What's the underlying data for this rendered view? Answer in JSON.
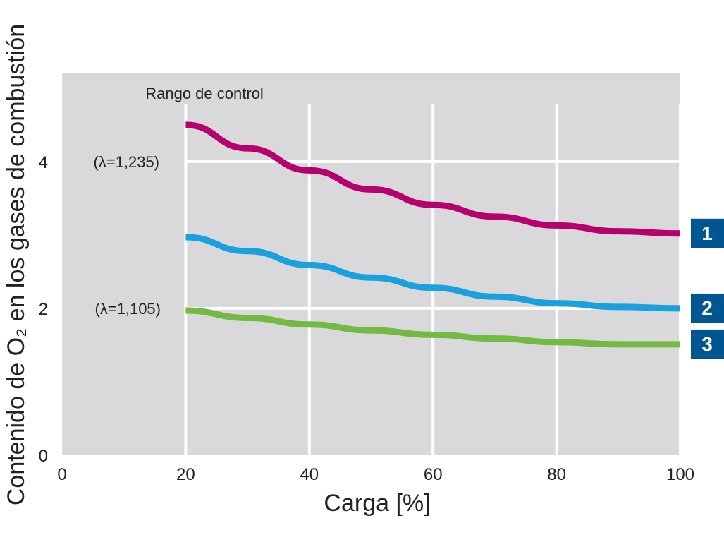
{
  "chart_data": {
    "type": "line",
    "xlabel": "Carga [%]",
    "ylabel": "Contenido de O₂ en los gases de combustión",
    "xlim": [
      0,
      100
    ],
    "ylim": [
      0,
      5.2
    ],
    "x_ticks": [
      "0",
      "20",
      "40",
      "60",
      "80",
      "100"
    ],
    "y_ticks": [
      "0",
      "2",
      "4"
    ],
    "grid": true,
    "control_range_label": "Rango de control",
    "annotations": [
      {
        "text": "(λ=1,235)",
        "y": 4
      },
      {
        "text": "(λ=1,105)",
        "y": 2
      }
    ],
    "series": [
      {
        "name": "1",
        "color": "#b5006e",
        "x": [
          20,
          30,
          40,
          50,
          60,
          70,
          80,
          90,
          100
        ],
        "y": [
          4.5,
          4.18,
          3.88,
          3.62,
          3.41,
          3.25,
          3.13,
          3.05,
          3.02
        ]
      },
      {
        "name": "2",
        "color": "#1aa0dc",
        "x": [
          20,
          30,
          40,
          50,
          60,
          70,
          80,
          90,
          100
        ],
        "y": [
          2.97,
          2.78,
          2.59,
          2.42,
          2.28,
          2.16,
          2.07,
          2.02,
          2.0
        ]
      },
      {
        "name": "3",
        "color": "#74b942",
        "x": [
          20,
          30,
          40,
          50,
          60,
          70,
          80,
          90,
          100
        ],
        "y": [
          1.97,
          1.87,
          1.78,
          1.7,
          1.64,
          1.59,
          1.54,
          1.51,
          1.51
        ]
      }
    ],
    "badge_color": "#005691",
    "plot_bg": "#d9d9db"
  }
}
